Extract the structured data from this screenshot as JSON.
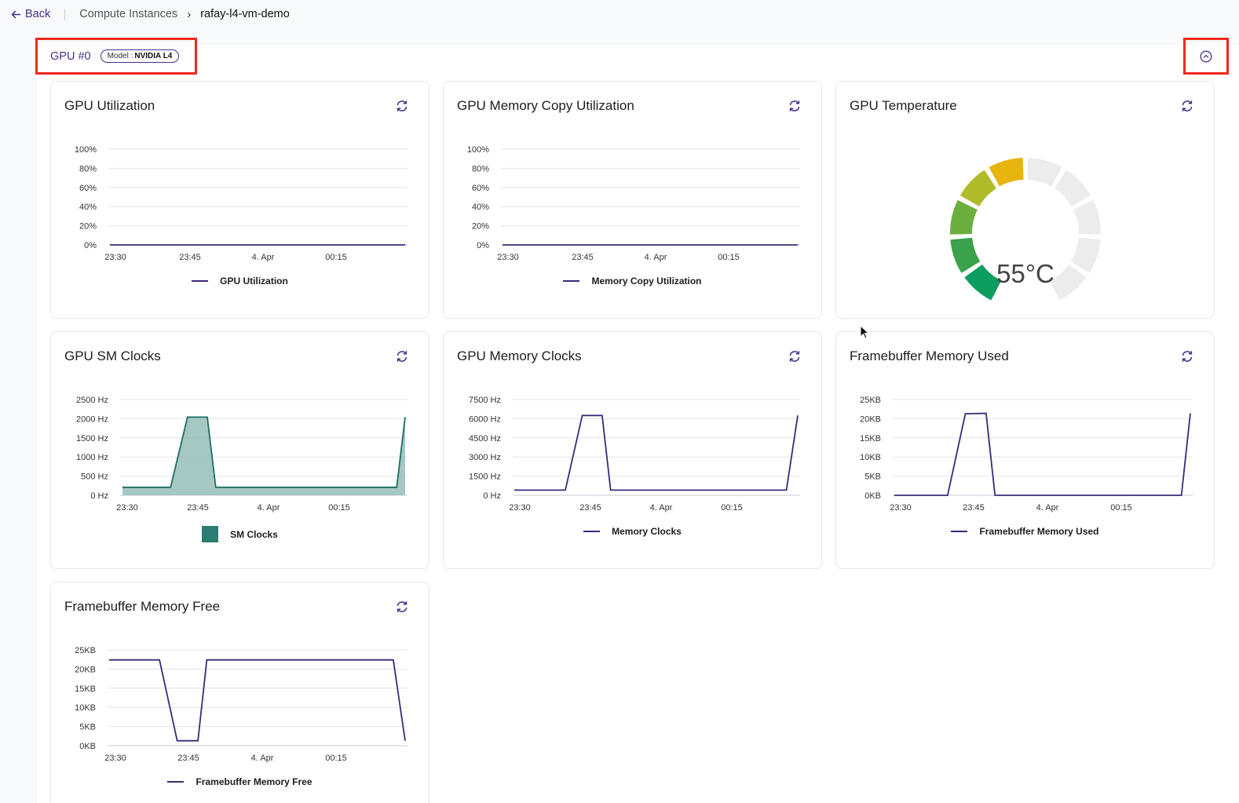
{
  "breadcrumb": {
    "back_label": "Back",
    "parent": "Compute Instances",
    "chevron": "›",
    "current": "rafay-l4-vm-demo"
  },
  "gpu": {
    "title": "GPU #0",
    "model_prefix": "Model :",
    "model_name": "NVIDIA L4"
  },
  "icons": {
    "back": "arrow-left-icon",
    "collapse": "chevron-up-circle-icon",
    "refresh": "refresh-icon"
  },
  "colors": {
    "accent": "#4a2f8a",
    "series_line": "#3b2a7a",
    "area_fill": "#8fbab3",
    "area_line": "#1f6e63",
    "highlight_border": "#f0281e"
  },
  "x_ticks": [
    "23:30",
    "23:45",
    "4. Apr",
    "00:15"
  ],
  "cards": {
    "gpu_util": {
      "title": "GPU Utilization",
      "legend": "GPU Utilization"
    },
    "mem_copy": {
      "title": "GPU Memory Copy Utilization",
      "legend": "Memory Copy Utilization"
    },
    "temp": {
      "title": "GPU Temperature",
      "value_label": "55°C"
    },
    "sm_clocks": {
      "title": "GPU SM Clocks",
      "legend": "SM Clocks"
    },
    "mem_clocks": {
      "title": "GPU Memory Clocks",
      "legend": "Memory Clocks"
    },
    "fb_used": {
      "title": "Framebuffer Memory Used",
      "legend": "Framebuffer Memory Used"
    },
    "fb_free": {
      "title": "Framebuffer Memory Free",
      "legend": "Framebuffer Memory Free"
    }
  },
  "chart_data": [
    {
      "id": "gpu_util",
      "type": "line",
      "title": "GPU Utilization",
      "y_ticks": [
        "100%",
        "80%",
        "60%",
        "40%",
        "20%",
        "0%"
      ],
      "ylim": [
        0,
        100
      ],
      "series": [
        {
          "name": "GPU Utilization",
          "x": [
            0,
            1
          ],
          "y": [
            0,
            0
          ]
        }
      ]
    },
    {
      "id": "mem_copy",
      "type": "line",
      "title": "GPU Memory Copy Utilization",
      "y_ticks": [
        "100%",
        "80%",
        "60%",
        "40%",
        "20%",
        "0%"
      ],
      "ylim": [
        0,
        100
      ],
      "series": [
        {
          "name": "Memory Copy Utilization",
          "x": [
            0,
            1
          ],
          "y": [
            0,
            0
          ]
        }
      ]
    },
    {
      "id": "sm_clocks",
      "type": "area",
      "title": "GPU SM Clocks",
      "y_ticks": [
        "2500 Hz",
        "2000 Hz",
        "1500 Hz",
        "1000 Hz",
        "500 Hz",
        "0 Hz"
      ],
      "ylim": [
        0,
        2500
      ],
      "series": [
        {
          "name": "SM Clocks",
          "x": [
            0,
            0.17,
            0.23,
            0.3,
            0.33,
            0.5,
            0.97,
            1.0
          ],
          "y": [
            210,
            210,
            2040,
            2040,
            210,
            210,
            210,
            2040
          ]
        }
      ]
    },
    {
      "id": "mem_clocks",
      "type": "line",
      "title": "GPU Memory Clocks",
      "y_ticks": [
        "7500 Hz",
        "6000 Hz",
        "4500 Hz",
        "3000 Hz",
        "1500 Hz",
        "0 Hz"
      ],
      "ylim": [
        0,
        7500
      ],
      "series": [
        {
          "name": "Memory Clocks",
          "x": [
            0,
            0.18,
            0.24,
            0.31,
            0.34,
            0.5,
            0.96,
            1.0
          ],
          "y": [
            405,
            405,
            6251,
            6251,
            405,
            405,
            405,
            6251
          ]
        }
      ]
    },
    {
      "id": "fb_used",
      "type": "line",
      "title": "Framebuffer Memory Used",
      "y_ticks": [
        "25KB",
        "20KB",
        "15KB",
        "10KB",
        "5KB",
        "0KB"
      ],
      "ylim": [
        0,
        25
      ],
      "series": [
        {
          "name": "Framebuffer Memory Used",
          "x": [
            0,
            0.18,
            0.24,
            0.31,
            0.34,
            0.5,
            0.97,
            1.0
          ],
          "y": [
            0,
            0,
            21.3,
            21.4,
            0,
            0,
            0,
            21.4
          ]
        }
      ]
    },
    {
      "id": "fb_free",
      "type": "line",
      "title": "Framebuffer Memory Free",
      "y_ticks": [
        "25KB",
        "20KB",
        "15KB",
        "10KB",
        "5KB",
        "0KB"
      ],
      "ylim": [
        0,
        25
      ],
      "series": [
        {
          "name": "Framebuffer Memory Free",
          "x": [
            0,
            0.17,
            0.23,
            0.3,
            0.33,
            0.6,
            0.96,
            1.0
          ],
          "y": [
            22.4,
            22.4,
            1.3,
            1.3,
            22.4,
            22.4,
            22.4,
            1.3
          ]
        }
      ]
    },
    {
      "id": "temp",
      "type": "gauge",
      "title": "GPU Temperature",
      "value": 55,
      "unit": "°C",
      "segments_total": 10,
      "segments_lit": 5
    }
  ]
}
